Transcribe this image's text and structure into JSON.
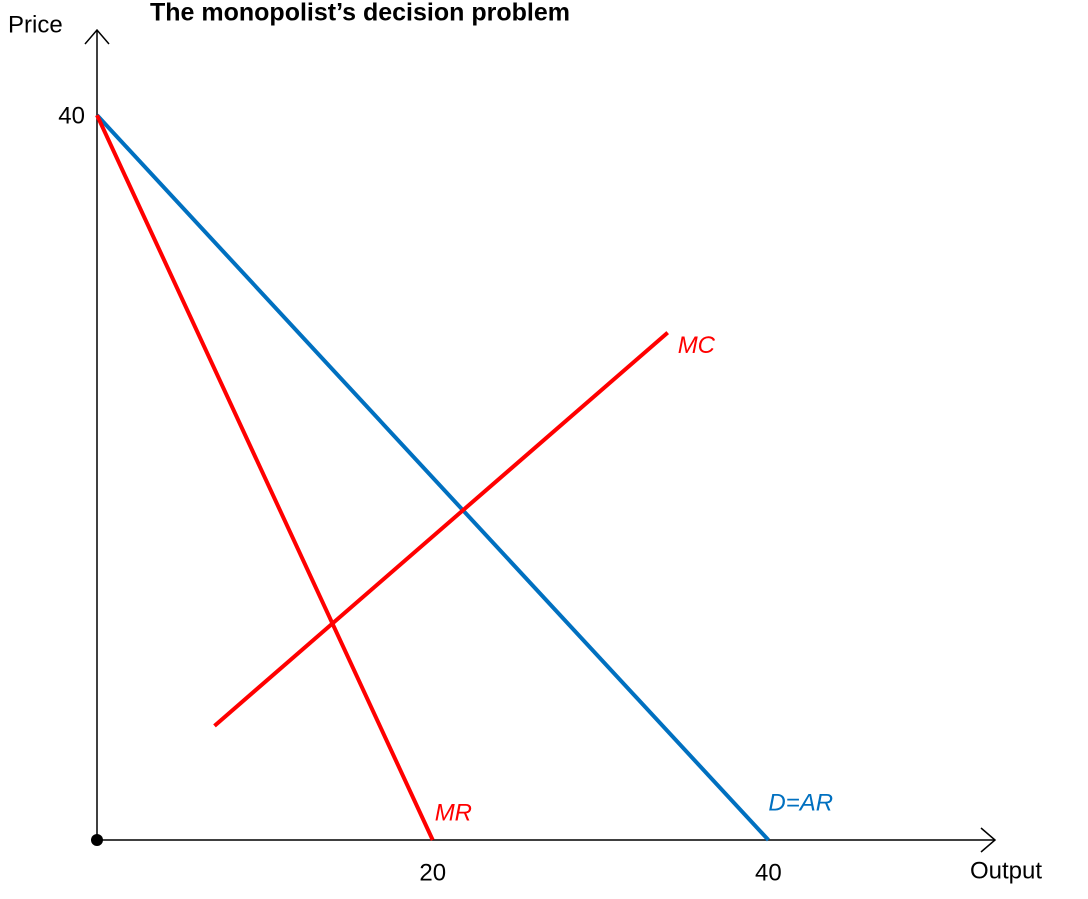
{
  "chart_data": {
    "type": "line",
    "title": "The monopolist’s decision problem",
    "xlabel": "Output",
    "ylabel": "Price",
    "xlim": [
      0,
      53.5
    ],
    "ylim": [
      0,
      44.7
    ],
    "xticks": [
      20,
      40
    ],
    "yticks": [
      40
    ],
    "series": [
      {
        "name": "D=AR",
        "color": "#0070c0",
        "x": [
          0,
          40
        ],
        "values": [
          40,
          0
        ]
      },
      {
        "name": "MR",
        "color": "#ff0000",
        "x": [
          0,
          20
        ],
        "values": [
          40,
          0
        ]
      },
      {
        "name": "MC",
        "color": "#ff0000",
        "x": [
          7,
          34
        ],
        "values": [
          6.3,
          28
        ]
      }
    ]
  }
}
